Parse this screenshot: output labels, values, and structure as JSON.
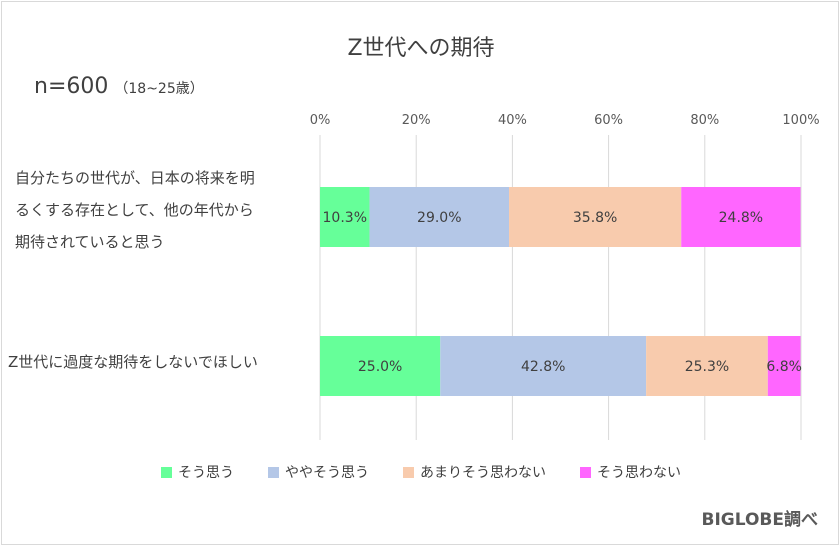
{
  "chart_data": {
    "type": "bar",
    "orientation": "horizontal",
    "stacked": "percent",
    "title": "Z世代への期待",
    "sample_size": "n=600",
    "sample_note": "（18~25歳）",
    "categories": [
      "自分たちの世代が、日本の将来を明るくする存在として、他の年代から期待されていると思う",
      "Z世代に過度な期待をしないでほしい"
    ],
    "category_lines": [
      [
        "自分たちの世代が、日本の将来を明",
        "るくする存在として、他の年代から",
        "期待されていると思う"
      ],
      [
        "Z世代に過度な期待をしないでほしい"
      ]
    ],
    "series": [
      {
        "name": "そう思う",
        "color": "#66ff99",
        "values": [
          10.3,
          25.0
        ],
        "labels": [
          "10.3%",
          "25.0%"
        ]
      },
      {
        "name": "ややそう思う",
        "color": "#b4c7e7",
        "values": [
          29.0,
          42.8
        ],
        "labels": [
          "29.0%",
          "42.8%"
        ]
      },
      {
        "name": "あまりそう思わない",
        "color": "#f8cbad",
        "values": [
          35.8,
          25.3
        ],
        "labels": [
          "35.8%",
          "25.3%"
        ]
      },
      {
        "name": "そう思わない",
        "color": "#ff66ff",
        "values": [
          24.8,
          6.8
        ],
        "labels": [
          "24.8%",
          "6.8%"
        ]
      }
    ],
    "xlim": [
      0,
      100
    ],
    "x_ticks": [
      "0%",
      "20%",
      "40%",
      "60%",
      "80%",
      "100%"
    ],
    "x_axis_position": "top",
    "grid": true,
    "legend_position": "bottom"
  },
  "source": "BIGLOBE調べ"
}
